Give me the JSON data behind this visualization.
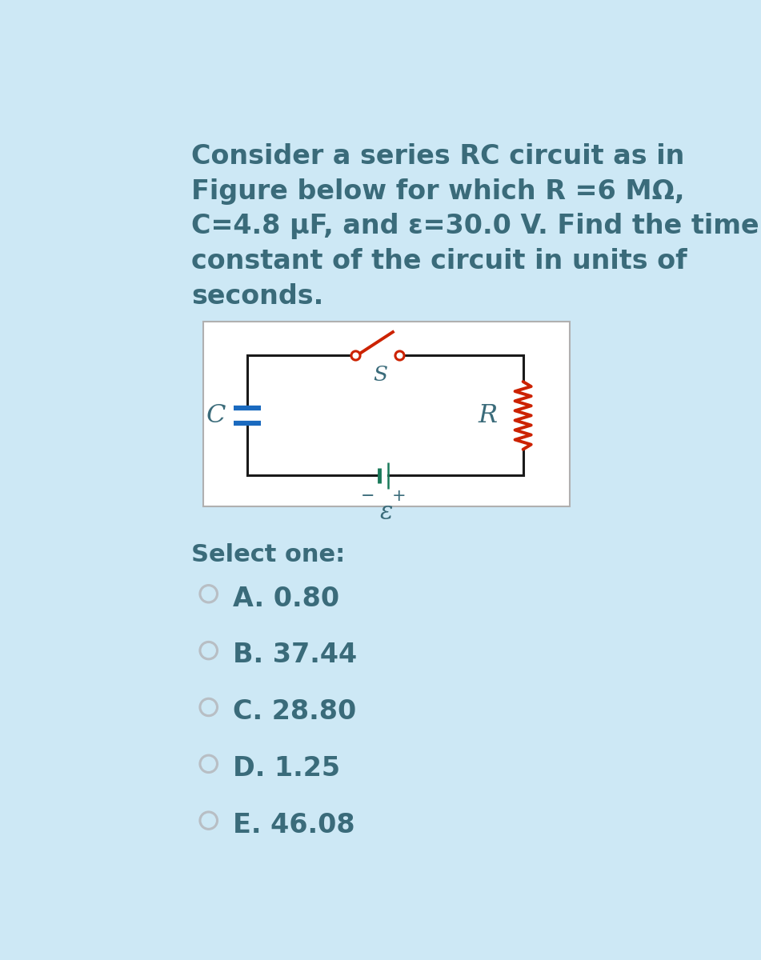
{
  "bg_color": "#cde8f5",
  "text_color": "#3a6b7a",
  "question_lines": [
    "Consider a series RC circuit as in",
    "Figure below for which R =6 MΩ,",
    "C=4.8 µF, and ε=30.0 V. Find the time",
    "constant of the circuit in units of",
    "seconds."
  ],
  "circuit_bg": "white",
  "circuit_border": "#b0b0b0",
  "wire_color": "#1a1a1a",
  "capacitor_color": "#1a6abf",
  "resistor_color": "#cc2200",
  "battery_color": "#1a7a5a",
  "switch_color": "#cc2200",
  "select_text": "Select one:",
  "options": [
    "A. 0.80",
    "B. 37.44",
    "C. 28.80",
    "D. 1.25",
    "E. 46.08"
  ],
  "question_fontsize": 24,
  "option_fontsize": 24,
  "select_fontsize": 22,
  "radio_outer_color": "#b8bec4",
  "radio_inner_color": "#cde8f5"
}
